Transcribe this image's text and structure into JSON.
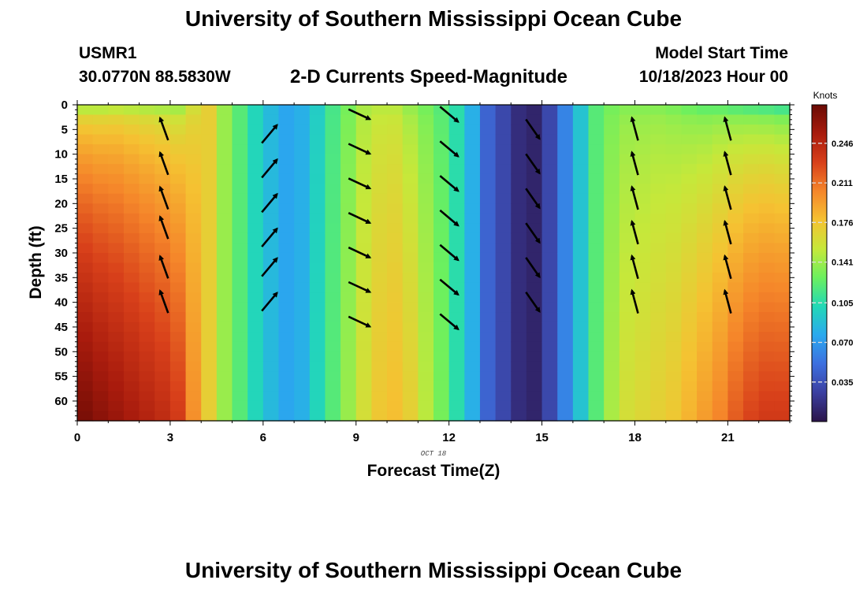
{
  "header": {
    "title": "University of Southern Mississippi Ocean Cube",
    "station_id": "USMR1",
    "station_coords": "30.0770N  88.5830W",
    "subtitle": "2-D Currents Speed-Magnitude",
    "model_start_label": "Model Start Time",
    "model_start_value": "10/18/2023 Hour 00"
  },
  "footer": {
    "title_repeat": "University of Southern Mississippi Ocean Cube"
  },
  "chart_data": {
    "type": "heatmap",
    "title": "2-D Currents Speed-Magnitude",
    "xlabel": "Forecast Time(Z)",
    "ylabel": "Depth (ft)",
    "date_label": "OCT 18",
    "xlim": [
      0,
      23
    ],
    "ylim": [
      64,
      0
    ],
    "x_ticks": [
      0,
      3,
      6,
      9,
      12,
      15,
      18,
      21
    ],
    "y_ticks": [
      0,
      5,
      10,
      15,
      20,
      25,
      30,
      35,
      40,
      45,
      50,
      55,
      60
    ],
    "colorbar": {
      "label": "Knots",
      "min": 0.0,
      "max": 0.28,
      "ticks": [
        "0.035",
        "0.070",
        "0.105",
        "0.141",
        "0.176",
        "0.211",
        "0.246"
      ],
      "colors": [
        "#2b1449",
        "#3b3fa0",
        "#3d6fdf",
        "#2aa9ef",
        "#22d9b6",
        "#6cf05e",
        "#c6e83a",
        "#f5c232",
        "#f5862a",
        "#d8401a",
        "#a81b0d",
        "#6a0a04"
      ]
    },
    "grid": {
      "hours": [
        0,
        0.5,
        1,
        1.5,
        2,
        2.5,
        3,
        3.5,
        4,
        4.5,
        5,
        5.5,
        6,
        6.5,
        7,
        7.5,
        8,
        8.5,
        9,
        9.5,
        10,
        10.5,
        11,
        11.5,
        12,
        12.5,
        13,
        13.5,
        14,
        14.5,
        15,
        15.5,
        16,
        16.5,
        17,
        17.5,
        18,
        18.5,
        19,
        19.5,
        20,
        20.5,
        21,
        21.5,
        22,
        22.5
      ],
      "depths": [
        0,
        2,
        4,
        6,
        8,
        10,
        12,
        14,
        16,
        18,
        20,
        22,
        24,
        26,
        28,
        30,
        32,
        34,
        36,
        38,
        40,
        42,
        44,
        46,
        48,
        50,
        52,
        54,
        56,
        58,
        60,
        62
      ],
      "surface_speed": [
        0.15,
        0.15,
        0.152,
        0.15,
        0.148,
        0.146,
        0.144,
        0.16,
        0.17,
        0.14,
        0.12,
        0.1,
        0.085,
        0.075,
        0.08,
        0.095,
        0.115,
        0.13,
        0.145,
        0.15,
        0.15,
        0.14,
        0.13,
        0.12,
        0.105,
        0.08,
        0.045,
        0.03,
        0.015,
        0.01,
        0.03,
        0.06,
        0.09,
        0.12,
        0.13,
        0.135,
        0.135,
        0.135,
        0.132,
        0.128,
        0.125,
        0.125,
        0.122,
        0.12,
        0.118,
        0.115
      ],
      "bottom_speed": [
        0.275,
        0.268,
        0.262,
        0.256,
        0.25,
        0.244,
        0.234,
        0.2,
        0.17,
        0.14,
        0.12,
        0.1,
        0.085,
        0.075,
        0.08,
        0.1,
        0.12,
        0.14,
        0.16,
        0.175,
        0.18,
        0.17,
        0.15,
        0.13,
        0.105,
        0.08,
        0.045,
        0.03,
        0.015,
        0.01,
        0.03,
        0.06,
        0.09,
        0.12,
        0.145,
        0.16,
        0.165,
        0.17,
        0.175,
        0.185,
        0.195,
        0.205,
        0.22,
        0.23,
        0.235,
        0.235
      ],
      "depth_shape_exponent": 0.55
    },
    "vectors": [
      {
        "hour": 2.6,
        "depths": [
          3,
          10,
          17,
          23,
          31,
          38
        ],
        "direction_deg": 340
      },
      {
        "hour": 6.0,
        "depths": [
          4,
          11,
          18,
          25,
          31,
          38
        ],
        "direction_deg": 40
      },
      {
        "hour": 8.9,
        "depths": [
          0,
          7,
          14,
          21,
          28,
          35,
          42
        ],
        "direction_deg": 115
      },
      {
        "hour": 11.8,
        "depths": [
          0,
          7,
          14,
          21,
          28,
          35,
          42
        ],
        "direction_deg": 130
      },
      {
        "hour": 14.5,
        "depths": [
          3,
          10,
          17,
          24,
          31,
          38
        ],
        "direction_deg": 145
      },
      {
        "hour": 17.8,
        "depths": [
          3,
          10,
          17,
          24,
          31,
          38
        ],
        "direction_deg": 345
      },
      {
        "hour": 20.8,
        "depths": [
          3,
          10,
          17,
          24,
          31,
          38
        ],
        "direction_deg": 345
      }
    ]
  }
}
